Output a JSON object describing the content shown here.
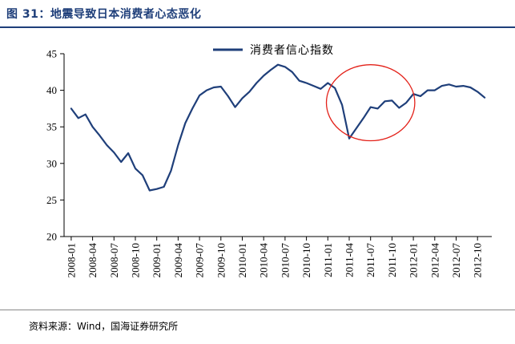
{
  "header": {
    "title": "图 31：地震导致日本消费者心态恶化"
  },
  "footer": {
    "source": "资料来源：Wind，国海证券研究所"
  },
  "colors": {
    "series": "#1f3f7a",
    "highlight": "#e32119",
    "header": "#1f3f7a"
  },
  "chart_data": {
    "type": "line",
    "title": "",
    "xlabel": "",
    "ylabel": "",
    "ylim": [
      20,
      45
    ],
    "yticks": [
      20,
      25,
      30,
      35,
      40,
      45
    ],
    "grid": false,
    "legend_position": "top-center",
    "xtick_labels": [
      "2008-01",
      "2008-04",
      "2008-07",
      "2008-10",
      "2009-01",
      "2009-04",
      "2009-07",
      "2009-10",
      "2010-01",
      "2010-04",
      "2010-07",
      "2010-10",
      "2011-01",
      "2011-04",
      "2011-07",
      "2011-10",
      "2012-01",
      "2012-04",
      "2012-07",
      "2012-10"
    ],
    "series": [
      {
        "name": "消费者信心指数",
        "x": [
          "2008-01",
          "2008-02",
          "2008-03",
          "2008-04",
          "2008-05",
          "2008-06",
          "2008-07",
          "2008-08",
          "2008-09",
          "2008-10",
          "2008-11",
          "2008-12",
          "2009-01",
          "2009-02",
          "2009-03",
          "2009-04",
          "2009-05",
          "2009-06",
          "2009-07",
          "2009-08",
          "2009-09",
          "2009-10",
          "2009-11",
          "2009-12",
          "2010-01",
          "2010-02",
          "2010-03",
          "2010-04",
          "2010-05",
          "2010-06",
          "2010-07",
          "2010-08",
          "2010-09",
          "2010-10",
          "2010-11",
          "2010-12",
          "2011-01",
          "2011-02",
          "2011-03",
          "2011-04",
          "2011-05",
          "2011-06",
          "2011-07",
          "2011-08",
          "2011-09",
          "2011-10",
          "2011-11",
          "2011-12",
          "2012-01",
          "2012-02",
          "2012-03",
          "2012-04",
          "2012-05",
          "2012-06",
          "2012-07",
          "2012-08",
          "2012-09",
          "2012-10",
          "2012-11"
        ],
        "values": [
          37.5,
          36.2,
          36.7,
          35.0,
          33.8,
          32.5,
          31.5,
          30.2,
          31.4,
          29.3,
          28.4,
          26.3,
          26.5,
          26.8,
          29.0,
          32.5,
          35.5,
          37.5,
          39.3,
          40.0,
          40.4,
          40.5,
          39.2,
          37.7,
          38.9,
          39.8,
          41.0,
          42.0,
          42.8,
          43.5,
          43.2,
          42.5,
          41.3,
          41.0,
          40.6,
          40.2,
          41.0,
          40.3,
          38.0,
          33.4,
          34.8,
          36.2,
          37.7,
          37.5,
          38.5,
          38.6,
          37.6,
          38.3,
          39.5,
          39.2,
          40.0,
          40.0,
          40.6,
          40.8,
          40.5,
          40.6,
          40.4,
          39.8,
          39.0
        ]
      }
    ],
    "annotations": [
      {
        "type": "ellipse",
        "x_center": "2011-07",
        "y_center": 38.3,
        "x_halfwidth_months": 6.2,
        "y_halfheight": 5.2
      }
    ]
  }
}
